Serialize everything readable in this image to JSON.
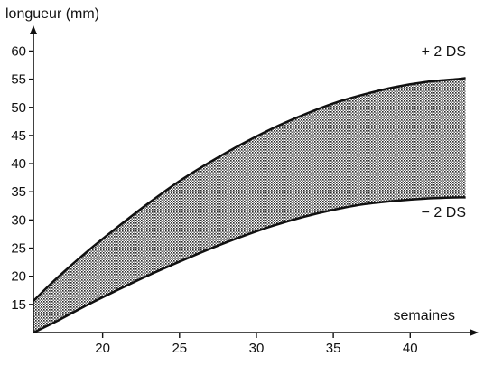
{
  "chart_data": {
    "type": "area",
    "title": "",
    "ylabel": "longueur (mm)",
    "xlabel": "semaines",
    "xlim": [
      15.5,
      43.8
    ],
    "ylim": [
      10,
      62
    ],
    "x_ticks": [
      20,
      25,
      30,
      35,
      40
    ],
    "y_ticks": [
      15,
      20,
      25,
      30,
      35,
      40,
      45,
      50,
      55,
      60
    ],
    "grid": false,
    "series": [
      {
        "name": "+ 2 DS",
        "x": [
          15.5,
          17,
          19,
          21,
          23,
          25,
          27,
          29,
          31,
          33,
          35,
          37,
          39,
          41,
          43,
          43.6
        ],
        "y": [
          15.6,
          19.6,
          24.4,
          28.8,
          33.0,
          36.9,
          40.3,
          43.4,
          46.2,
          48.6,
          50.7,
          52.3,
          53.6,
          54.5,
          55.0,
          55.2
        ]
      },
      {
        "name": "− 2 DS",
        "x": [
          15.5,
          17,
          19,
          21,
          23,
          25,
          27,
          29,
          31,
          33,
          35,
          37,
          39,
          41,
          43,
          43.6
        ],
        "y": [
          10.0,
          12.0,
          14.9,
          17.6,
          20.2,
          22.6,
          24.9,
          27.0,
          28.9,
          30.5,
          31.8,
          32.8,
          33.4,
          33.8,
          34.0,
          34.0
        ]
      }
    ]
  }
}
